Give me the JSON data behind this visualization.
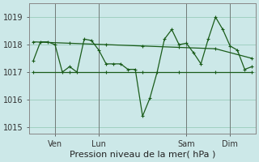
{
  "bg_color": "#cce8e8",
  "grid_color": "#99ccbb",
  "line_color": "#1a5c1a",
  "marker_color": "#1a5c1a",
  "xlabel": "Pression niveau de la mer( hPa )",
  "ylim": [
    1014.75,
    1019.5
  ],
  "yticks": [
    1015,
    1016,
    1017,
    1018,
    1019
  ],
  "vline_color": "#666666",
  "series_jagged_x": [
    0,
    1,
    2,
    3,
    4,
    5,
    6,
    7,
    8,
    9,
    10,
    11,
    12,
    13,
    14,
    15,
    16,
    17,
    18,
    19,
    20,
    21,
    22,
    23,
    24,
    25,
    26,
    27,
    28,
    29,
    30
  ],
  "series_jagged_y": [
    1017.4,
    1018.1,
    1018.1,
    1018.0,
    1017.0,
    1017.2,
    1017.0,
    1018.2,
    1018.15,
    1017.8,
    1017.3,
    1017.3,
    1017.3,
    1017.1,
    1017.1,
    1015.4,
    1016.05,
    1017.0,
    1018.2,
    1018.55,
    1018.0,
    1018.05,
    1017.7,
    1017.3,
    1018.2,
    1019.0,
    1018.55,
    1017.95,
    1017.8,
    1017.1,
    1017.2
  ],
  "series_upper_x": [
    0,
    5,
    10,
    15,
    20,
    25,
    30
  ],
  "series_upper_y": [
    1018.1,
    1018.05,
    1018.0,
    1017.95,
    1017.9,
    1017.85,
    1017.5
  ],
  "series_lower_x": [
    0,
    5,
    10,
    15,
    20,
    25,
    30
  ],
  "series_lower_y": [
    1017.0,
    1017.0,
    1017.0,
    1017.0,
    1017.0,
    1017.0,
    1017.0
  ],
  "vlines_x": [
    3,
    9,
    21,
    27
  ],
  "xtick_labels": [
    "Ven",
    "Lun",
    "Sam",
    "Dim"
  ],
  "xtick_positions": [
    3,
    9,
    21,
    27
  ],
  "tick_fontsize": 7,
  "xlabel_fontsize": 8
}
